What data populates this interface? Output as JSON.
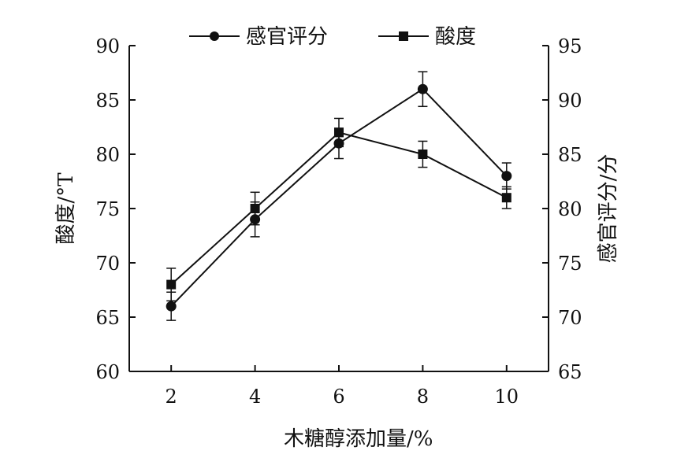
{
  "chart_data": {
    "type": "line",
    "x_label": "木糖醇添加量/%",
    "y_left_label": "酸度/°T",
    "y_right_label": "感官评分/分",
    "x": [
      2,
      4,
      6,
      8,
      10
    ],
    "x_ticks": [
      "2",
      "4",
      "6",
      "8",
      "10"
    ],
    "x_range": [
      1,
      11
    ],
    "y_left_range": [
      60,
      90
    ],
    "y_left_ticks": [
      "60",
      "65",
      "70",
      "75",
      "80",
      "85",
      "90"
    ],
    "y_right_range": [
      65,
      95
    ],
    "y_right_ticks": [
      "65",
      "70",
      "75",
      "80",
      "85",
      "90",
      "95"
    ],
    "grid": false,
    "legend_position": "top",
    "series": [
      {
        "name": "感官评分",
        "axis": "right",
        "marker": "circle",
        "values": [
          71,
          79,
          86,
          91,
          83
        ],
        "error": [
          1.3,
          1.6,
          1.4,
          1.6,
          1.2
        ]
      },
      {
        "name": "酸度",
        "axis": "left",
        "marker": "square",
        "values": [
          68,
          75,
          82,
          80,
          76
        ],
        "error": [
          1.5,
          1.5,
          1.3,
          1.2,
          1.0
        ]
      }
    ],
    "line_color": "#111111"
  }
}
